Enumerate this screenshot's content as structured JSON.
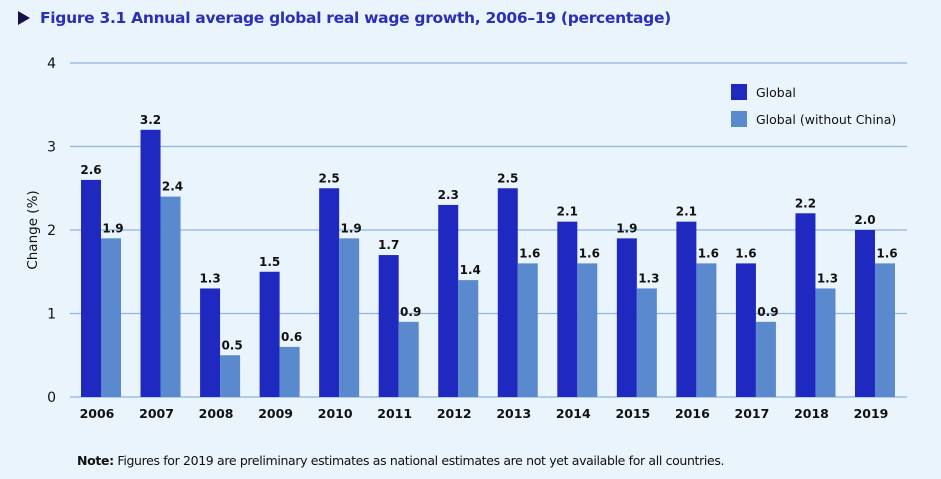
{
  "figure": {
    "title": "Figure 3.1  Annual average global real wage growth, 2006–19 (percentage)",
    "note_label": "Note:",
    "note_text": " Figures for 2019 are preliminary estimates as national estimates are not yet available for all countries."
  },
  "chart_data": {
    "type": "bar",
    "title": "Annual average global real wage growth, 2006–19 (percentage)",
    "xlabel": "",
    "ylabel": "Change (%)",
    "ylim": [
      0,
      4
    ],
    "yticks": [
      0,
      1,
      2,
      3,
      4
    ],
    "grid": true,
    "legend_position": "top-right",
    "categories": [
      "2006",
      "2007",
      "2008",
      "2009",
      "2010",
      "2011",
      "2012",
      "2013",
      "2014",
      "2015",
      "2016",
      "2017",
      "2018",
      "2019"
    ],
    "series": [
      {
        "name": "Global",
        "color": "#2029bf",
        "values": [
          2.6,
          3.2,
          1.3,
          1.5,
          2.5,
          1.7,
          2.3,
          2.5,
          2.1,
          1.9,
          2.1,
          1.6,
          2.2,
          2.0
        ],
        "labels": [
          "2.6",
          "3.2",
          "1.3",
          "1.5",
          "2.5",
          "1.7",
          "2.3",
          "2.5",
          "2.1",
          "1.9",
          "2.1",
          "1.6",
          "2.2",
          "2.0"
        ]
      },
      {
        "name": "Global (without China)",
        "color": "#5b89cd",
        "values": [
          1.9,
          2.4,
          0.5,
          0.6,
          1.9,
          0.9,
          1.4,
          1.6,
          1.6,
          1.3,
          1.6,
          0.9,
          1.3,
          1.6
        ],
        "labels": [
          "1.9",
          "2.4",
          "0.5",
          "0.6",
          "1.9",
          "0.9",
          "1.4",
          "1.6",
          "1.6",
          "1.3",
          "1.6",
          "0.9",
          "1.3",
          "1.6"
        ]
      }
    ],
    "colors": {
      "gridline": "#8fb5de",
      "axis_text": "#111111"
    }
  }
}
